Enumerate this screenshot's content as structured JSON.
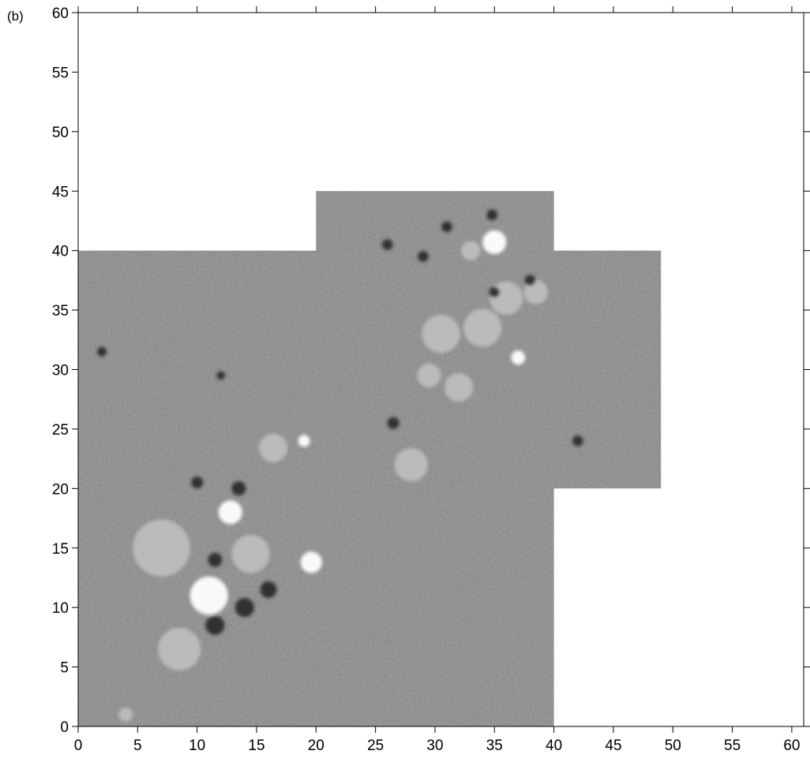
{
  "panel_label": "(b)",
  "chart_data": {
    "type": "heatmap",
    "title": "",
    "xlabel": "",
    "ylabel": "",
    "xlim": [
      0,
      61
    ],
    "ylim": [
      0,
      60
    ],
    "x_ticks": [
      0,
      5,
      10,
      15,
      20,
      25,
      30,
      35,
      40,
      45,
      50,
      55,
      60
    ],
    "y_ticks": [
      0,
      5,
      10,
      15,
      20,
      25,
      30,
      35,
      40,
      45,
      50,
      55,
      60
    ],
    "grid": false,
    "colormap": "grayscale",
    "background_gray": "#8a8a8a",
    "data_region_outline": [
      [
        0,
        0
      ],
      [
        40,
        0
      ],
      [
        40,
        20
      ],
      [
        49,
        20
      ],
      [
        49,
        40
      ],
      [
        40,
        40
      ],
      [
        40,
        45
      ],
      [
        20,
        45
      ],
      [
        20,
        40
      ],
      [
        0,
        40
      ]
    ],
    "features": [
      {
        "x": 11,
        "y": 11,
        "r": 1.6,
        "tone": "bright"
      },
      {
        "x": 12.8,
        "y": 18,
        "r": 1.0,
        "tone": "bright"
      },
      {
        "x": 19.6,
        "y": 13.8,
        "r": 0.9,
        "tone": "bright"
      },
      {
        "x": 16.4,
        "y": 23.4,
        "r": 1.2,
        "tone": "light"
      },
      {
        "x": 19,
        "y": 24,
        "r": 0.5,
        "tone": "bright"
      },
      {
        "x": 8.5,
        "y": 6.5,
        "r": 1.8,
        "tone": "light"
      },
      {
        "x": 7,
        "y": 15,
        "r": 2.4,
        "tone": "light"
      },
      {
        "x": 14.5,
        "y": 14.5,
        "r": 1.6,
        "tone": "light"
      },
      {
        "x": 14,
        "y": 10,
        "r": 0.8,
        "tone": "dark"
      },
      {
        "x": 11.5,
        "y": 8.5,
        "r": 0.8,
        "tone": "dark"
      },
      {
        "x": 16,
        "y": 11.5,
        "r": 0.7,
        "tone": "dark"
      },
      {
        "x": 13.5,
        "y": 20,
        "r": 0.6,
        "tone": "dark"
      },
      {
        "x": 11.5,
        "y": 14,
        "r": 0.6,
        "tone": "dark"
      },
      {
        "x": 4,
        "y": 1,
        "r": 0.6,
        "tone": "light"
      },
      {
        "x": 35,
        "y": 40.7,
        "r": 1.0,
        "tone": "bright"
      },
      {
        "x": 33,
        "y": 40,
        "r": 0.8,
        "tone": "light"
      },
      {
        "x": 30.5,
        "y": 33,
        "r": 1.6,
        "tone": "light"
      },
      {
        "x": 34,
        "y": 33.5,
        "r": 1.6,
        "tone": "light"
      },
      {
        "x": 36,
        "y": 36,
        "r": 1.4,
        "tone": "light"
      },
      {
        "x": 29.5,
        "y": 29.5,
        "r": 1.0,
        "tone": "light"
      },
      {
        "x": 32,
        "y": 28.5,
        "r": 1.2,
        "tone": "light"
      },
      {
        "x": 28,
        "y": 22,
        "r": 1.4,
        "tone": "light"
      },
      {
        "x": 38.5,
        "y": 36.5,
        "r": 1.0,
        "tone": "light"
      },
      {
        "x": 37,
        "y": 31,
        "r": 0.6,
        "tone": "bright"
      },
      {
        "x": 34.8,
        "y": 43,
        "r": 0.45,
        "tone": "dark"
      },
      {
        "x": 31,
        "y": 42,
        "r": 0.45,
        "tone": "dark"
      },
      {
        "x": 26,
        "y": 40.5,
        "r": 0.45,
        "tone": "dark"
      },
      {
        "x": 29,
        "y": 39.5,
        "r": 0.45,
        "tone": "dark"
      },
      {
        "x": 38,
        "y": 37.5,
        "r": 0.45,
        "tone": "dark"
      },
      {
        "x": 35,
        "y": 36.5,
        "r": 0.45,
        "tone": "dark"
      },
      {
        "x": 2,
        "y": 31.5,
        "r": 0.4,
        "tone": "dark"
      },
      {
        "x": 12,
        "y": 29.5,
        "r": 0.35,
        "tone": "dark"
      },
      {
        "x": 10,
        "y": 20.5,
        "r": 0.5,
        "tone": "dark"
      },
      {
        "x": 26.5,
        "y": 25.5,
        "r": 0.5,
        "tone": "dark"
      },
      {
        "x": 42,
        "y": 24,
        "r": 0.45,
        "tone": "dark"
      }
    ]
  }
}
